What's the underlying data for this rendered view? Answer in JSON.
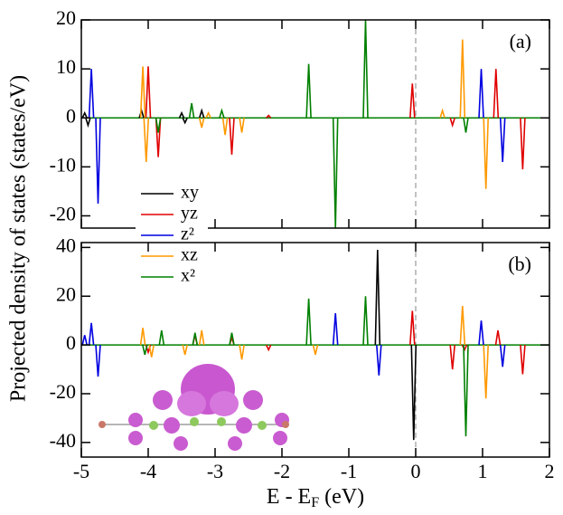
{
  "chart_data": [
    {
      "type": "stem",
      "panel_label": "(a)",
      "ylabel": "Projected density of states (states/eV)",
      "legend": "lower left",
      "xlim": [
        -5,
        2
      ],
      "xticks": [
        -5,
        -4,
        -3,
        -2,
        -1,
        0,
        1,
        2
      ],
      "ylim": [
        -22.5,
        20
      ],
      "yticks": [
        -20,
        -10,
        0,
        10,
        20
      ],
      "series": [
        {
          "name": "xy",
          "color": "#000000",
          "x": [
            -4.95,
            -4.9,
            -4.1,
            -3.5,
            -3.45,
            -3.2
          ],
          "values": [
            1,
            -1.5,
            1.5,
            1,
            -1,
            1.5
          ]
        },
        {
          "name": "yz",
          "color": "#e00000",
          "x": [
            -4.0,
            -3.85,
            -2.75,
            -2.2,
            -0.05,
            0.55,
            1.2,
            1.6
          ],
          "values": [
            10.5,
            -8,
            -7.5,
            0.5,
            7,
            -1.5,
            10,
            -10.5
          ]
        },
        {
          "name": "z²",
          "color": "#0000e0",
          "x": [
            -4.85,
            -4.75,
            0.98,
            1.3
          ],
          "values": [
            10,
            -17.5,
            10,
            -9
          ]
        },
        {
          "name": "xz",
          "color": "#ff9900",
          "x": [
            -4.08,
            -4.03,
            -3.2,
            -3.1,
            -2.85,
            -2.6,
            0.4,
            0.7,
            1.05
          ],
          "values": [
            10.5,
            -9,
            -2,
            1,
            -3.5,
            -3,
            1.5,
            16,
            -14.5
          ]
        },
        {
          "name": "x²",
          "color": "#008000",
          "x": [
            -3.85,
            -3.35,
            -2.9,
            -1.6,
            -1.2,
            -0.75,
            0.75
          ],
          "values": [
            -3,
            3,
            1.5,
            11,
            -22.5,
            20,
            -3
          ]
        }
      ]
    },
    {
      "type": "stem",
      "panel_label": "(b)",
      "xlabel": [
        "E - E",
        "F",
        " (eV)"
      ],
      "xlim": [
        -5,
        2
      ],
      "xticks": [
        -5,
        -4,
        -3,
        -2,
        -1,
        0,
        1,
        2
      ],
      "ylim": [
        -46,
        42
      ],
      "yticks": [
        -40,
        -20,
        0,
        20,
        40
      ],
      "series": [
        {
          "name": "xy",
          "color": "#000000",
          "x": [
            -0.57,
            -0.03
          ],
          "values": [
            39,
            -39
          ]
        },
        {
          "name": "yz",
          "color": "#e00000",
          "x": [
            -4.0,
            -3.3,
            -2.75,
            -2.2,
            -0.05,
            0.55,
            0.73,
            1.23,
            1.6
          ],
          "values": [
            -3,
            4,
            3,
            -2,
            14,
            -10,
            -2,
            6,
            -12
          ]
        },
        {
          "name": "z²",
          "color": "#0000e0",
          "x": [
            -4.95,
            -4.85,
            -4.75,
            -1.2,
            -0.55,
            0.98,
            1.3
          ],
          "values": [
            4,
            9,
            -13,
            13,
            -12.5,
            10,
            -9
          ]
        },
        {
          "name": "xz",
          "color": "#ff9900",
          "x": [
            -4.08,
            -3.95,
            -3.45,
            -3.2,
            -2.6,
            -1.5,
            0.7,
            1.05
          ],
          "values": [
            7,
            -5,
            -4,
            6,
            -6,
            -4,
            16,
            -22
          ]
        },
        {
          "name": "x²",
          "color": "#008000",
          "x": [
            -4.05,
            -3.8,
            -3.3,
            -2.75,
            -1.6,
            -0.75,
            0.75
          ],
          "values": [
            -4,
            6,
            5,
            5,
            19,
            20,
            -37.5
          ]
        }
      ]
    }
  ]
}
